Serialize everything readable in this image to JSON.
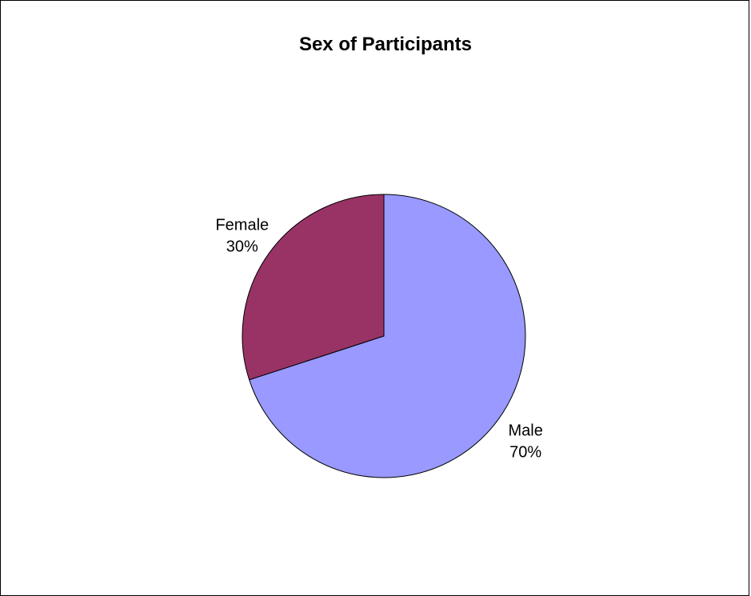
{
  "chart_data": {
    "type": "pie",
    "title": "Sex of Participants",
    "slices": [
      {
        "label": "Male",
        "value": 70,
        "value_label": "70%",
        "color": "#9999ff"
      },
      {
        "label": "Female",
        "value": 30,
        "value_label": "30%",
        "color": "#993366"
      }
    ],
    "start_angle_deg": 0,
    "direction": "clockwise",
    "slice_border_color": "#000000"
  }
}
